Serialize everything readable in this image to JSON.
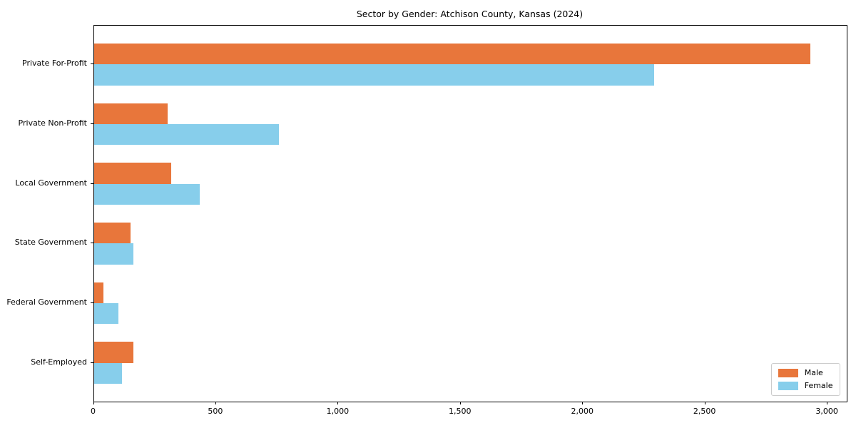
{
  "figure": {
    "background": "#ffffff",
    "axis_color": "#000000"
  },
  "chart_data": {
    "type": "bar",
    "orientation": "horizontal",
    "title": "Sector by Gender: Atchison County, Kansas (2024)",
    "categories": [
      "Private For-Profit",
      "Private Non-Profit",
      "Local Government",
      "State Government",
      "Federal Government",
      "Self-Employed"
    ],
    "series": [
      {
        "name": "Male",
        "color": "#e8763b",
        "values": [
          2930,
          303,
          316,
          149,
          39,
          163
        ]
      },
      {
        "name": "Female",
        "color": "#87ceeb",
        "values": [
          2291,
          757,
          433,
          163,
          100,
          115
        ]
      }
    ],
    "xlabel": "",
    "ylabel": "",
    "xlim": [
      0,
      3077
    ],
    "x_ticks": [
      0,
      500,
      1000,
      1500,
      2000,
      2500,
      3000
    ],
    "x_tick_labels": [
      "0",
      "500",
      "1,000",
      "1,500",
      "2,000",
      "2,500",
      "3,000"
    ],
    "grid": false,
    "legend": {
      "position": "lower right"
    }
  }
}
